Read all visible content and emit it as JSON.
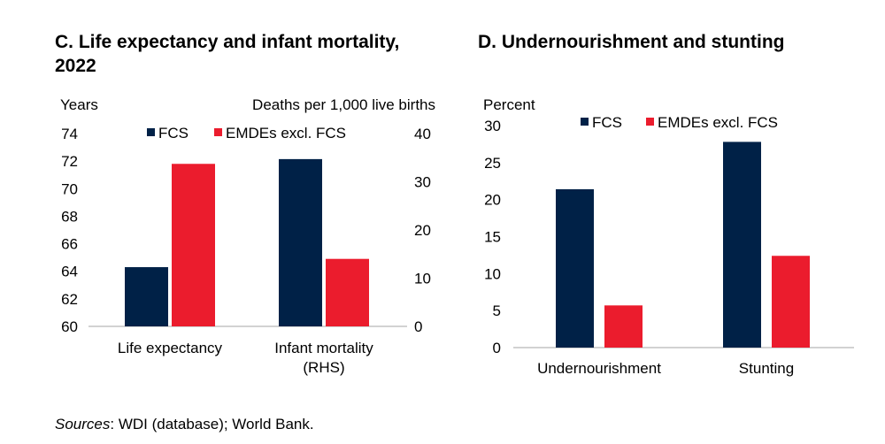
{
  "colors": {
    "fcs": "#002147",
    "emde": "#eb1c2d",
    "axis": "#a6a6a6"
  },
  "titles": {
    "c": "C. Life expectancy and infant mortality, 2022",
    "d": "D. Undernourishment and stunting"
  },
  "sources": {
    "label": "Sources",
    "text": ": WDI (database); World Bank."
  },
  "chart_data": [
    {
      "type": "bar",
      "title": "C. Life expectancy and infant mortality, 2022",
      "categories": [
        "Life expectancy",
        "Infant mortality (RHS)"
      ],
      "category_lines": [
        [
          "Life expectancy"
        ],
        [
          "Infant mortality",
          "(RHS)"
        ]
      ],
      "series": [
        {
          "name": "FCS",
          "values": [
            64.3,
            34.7
          ]
        },
        {
          "name": "EMDEs excl. FCS",
          "values": [
            71.8,
            14.0
          ]
        }
      ],
      "ylabel": "Years",
      "ylim": [
        60,
        74
      ],
      "yticks": [
        "74",
        "72",
        "70",
        "68",
        "66",
        "64",
        "62",
        "60"
      ],
      "y2label": "Deaths per 1,000 live births",
      "y2lim": [
        0,
        40
      ],
      "y2ticks": [
        "40",
        "30",
        "20",
        "10",
        "0"
      ],
      "legend": "top-center",
      "grid": false
    },
    {
      "type": "bar",
      "title": "D. Undernourishment and stunting",
      "categories": [
        "Undernourishment",
        "Stunting"
      ],
      "series": [
        {
          "name": "FCS",
          "values": [
            21.4,
            27.8
          ]
        },
        {
          "name": "EMDEs excl. FCS",
          "values": [
            5.7,
            12.4
          ]
        }
      ],
      "ylabel": "Percent",
      "ylim": [
        0,
        30
      ],
      "yticks": [
        "30",
        "25",
        "20",
        "15",
        "10",
        "5",
        "0"
      ],
      "legend": "top-center",
      "grid": false
    }
  ]
}
